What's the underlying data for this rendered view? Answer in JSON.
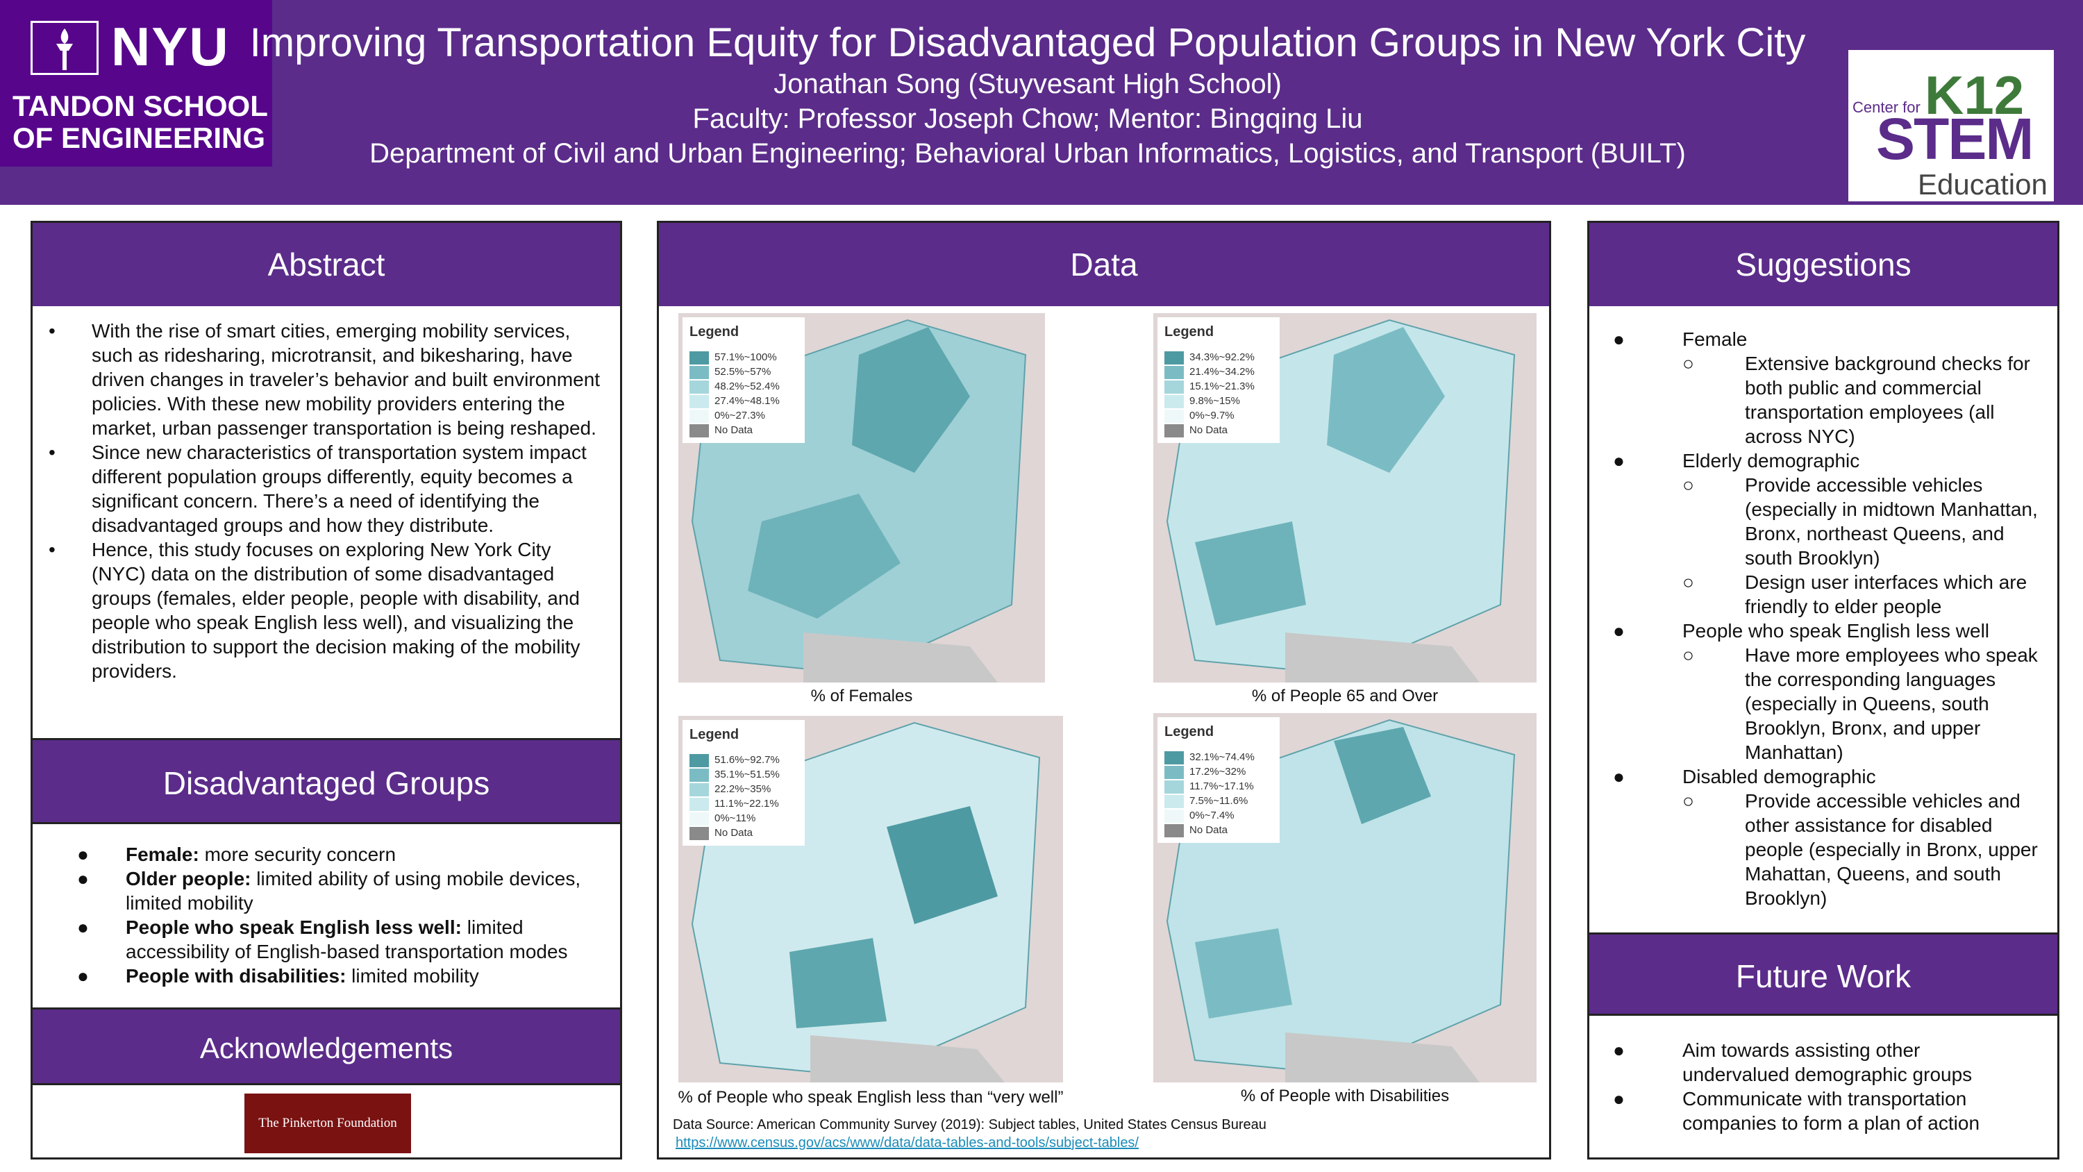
{
  "header": {
    "nyu": "NYU",
    "school_line1": "TANDON SCHOOL",
    "school_line2": "OF ENGINEERING",
    "title": "Improving Transportation Equity for Disadvantaged Population Groups in New York City",
    "author": "Jonathan Song (Stuyvesant High School)",
    "faculty": "Faculty: Professor Joseph Chow; Mentor: Bingqing Liu",
    "department": "Department of Civil and Urban Engineering; Behavioral Urban Informatics, Logistics, and Transport (BUILT)",
    "k12": {
      "center_for": "Center for",
      "k12": "K12",
      "stem": "STEM",
      "education": "Education"
    }
  },
  "abstract": {
    "heading": "Abstract",
    "items": [
      "With the rise of smart cities, emerging mobility services, such as ridesharing, microtransit, and bikesharing, have driven changes in traveler’s behavior and built environment policies. With these new mobility providers entering the market, urban passenger transportation is being reshaped.",
      "Since new characteristics of transportation system impact different population groups differently, equity becomes a significant concern. There’s a need of identifying the disadvantaged groups and how they distribute.",
      "Hence, this study focuses on exploring New York City (NYC) data on the distribution of some disadvantaged groups (females, elder people, people with disability, and people who speak English less well), and visualizing the distribution to support the decision making of the mobility providers."
    ]
  },
  "groups": {
    "heading": "Disadvantaged Groups",
    "items": [
      {
        "bold": "Female:",
        "text": " more security concern"
      },
      {
        "bold": "Older people:",
        "text": " limited ability of using mobile devices, limited mobility"
      },
      {
        "bold": "People who speak English less well:",
        "text": " limited accessibility of English-based transportation modes"
      },
      {
        "bold": "People with disabilities:",
        "text": " limited mobility"
      }
    ]
  },
  "acknowledgements": {
    "heading": "Acknowledgements",
    "sponsor": "The Pinkerton Foundation"
  },
  "data": {
    "heading": "Data",
    "source": "Data Source: American Community Survey (2019): Subject tables, United States Census Bureau",
    "link": "https://www.census.gov/acs/www/data/data-tables-and-tools/subject-tables/",
    "maps": [
      {
        "caption": "% of Females",
        "legend_title": "Legend",
        "ranges": [
          "57.1%~100%",
          "52.5%~57%",
          "48.2%~52.4%",
          "27.4%~48.1%",
          "0%~27.3%",
          "No Data"
        ]
      },
      {
        "caption": "% of People 65 and Over",
        "legend_title": "Legend",
        "ranges": [
          "34.3%~92.2%",
          "21.4%~34.2%",
          "15.1%~21.3%",
          "9.8%~15%",
          "0%~9.7%",
          "No Data"
        ]
      },
      {
        "caption": "% of People who speak English less than “very well”",
        "legend_title": "Legend",
        "ranges": [
          "51.6%~92.7%",
          "35.1%~51.5%",
          "22.2%~35%",
          "11.1%~22.1%",
          "0%~11%",
          "No Data"
        ]
      },
      {
        "caption": "% of People with Disabilities",
        "legend_title": "Legend",
        "ranges": [
          "32.1%~74.4%",
          "17.2%~32%",
          "11.7%~17.1%",
          "7.5%~11.6%",
          "0%~7.4%",
          "No Data"
        ]
      }
    ],
    "swatch_colors": [
      "#4e9aa3",
      "#7bbcc4",
      "#a5d6dc",
      "#cbeaee",
      "#eef8f9",
      "#8a8a8a"
    ]
  },
  "suggestions": {
    "heading": "Suggestions",
    "groups": [
      {
        "label": "Female",
        "subs": [
          "Extensive background checks for both public and commercial transportation employees (all across NYC)"
        ]
      },
      {
        "label": "Elderly demographic",
        "subs": [
          "Provide accessible vehicles (especially in midtown Manhattan, Bronx, northeast Queens, and south Brooklyn)",
          "Design user interfaces which are friendly to elder people"
        ]
      },
      {
        "label": "People who speak English less well",
        "subs": [
          "Have more employees who speak the corresponding languages (especially in Queens, south Brooklyn, Bronx, and upper Manhattan)"
        ]
      },
      {
        "label": "Disabled demographic",
        "subs": [
          "Provide accessible vehicles and other assistance for disabled people (especially in Bronx, upper Mahattan, Queens, and south Brooklyn)"
        ]
      }
    ]
  },
  "future": {
    "heading": "Future Work",
    "items": [
      "Aim towards assisting other undervalued demographic groups",
      "Communicate with transportation companies to form a plan of action"
    ]
  }
}
